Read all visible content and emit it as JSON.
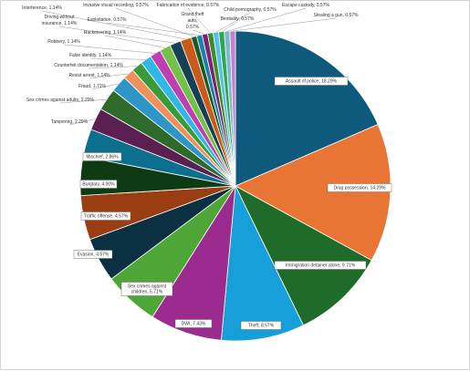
{
  "chart_data": {
    "type": "pie",
    "title": "",
    "slices": [
      {
        "label": "Assault of police, 18.29%",
        "value": 18.29,
        "color": "#0f5a7c"
      },
      {
        "label": "Drug possession, 14.29%",
        "value": 14.29,
        "color": "#e87533"
      },
      {
        "label": "Immigration detainer alone, 9.71%",
        "value": 9.71,
        "color": "#1f6b2a"
      },
      {
        "label": "Theft, 8.57%",
        "value": 8.57,
        "color": "#169fd9"
      },
      {
        "label": "DWI, 7.43%",
        "value": 7.43,
        "color": "#9b2b8e"
      },
      {
        "label": "Sex crimes against children, 5.71%",
        "value": 5.71,
        "color": "#4ea636"
      },
      {
        "label": "Evasion, 4.57%",
        "value": 4.57,
        "color": "#0a3042"
      },
      {
        "label": "Traffic offense, 4.57%",
        "value": 4.57,
        "color": "#9a3d12"
      },
      {
        "label": "Burglary, 4.00%",
        "value": 4.0,
        "color": "#0e3b14"
      },
      {
        "label": "Mischief, 2.86%",
        "value": 2.86,
        "color": "#0b6f8d"
      },
      {
        "label": "Tampering, 2.29%",
        "value": 2.29,
        "color": "#5c1f52"
      },
      {
        "label": "Sex crimes against adults, 2.29%",
        "value": 2.29,
        "color": "#2e6a2a"
      },
      {
        "label": "Fraud, 1.71%",
        "value": 1.71,
        "color": "#2e96c6"
      },
      {
        "label": "Resist arrest, 1.14%",
        "value": 1.14,
        "color": "#f0915c"
      },
      {
        "label": "Counterfeit documentation, 1.14%",
        "value": 1.14,
        "color": "#3a9a3a"
      },
      {
        "label": "False identity, 1.14%",
        "value": 1.14,
        "color": "#2fb7e8"
      },
      {
        "label": "Robbery, 1.14%",
        "value": 1.14,
        "color": "#c03fb0"
      },
      {
        "label": "Racketeering, 1.14%",
        "value": 1.14,
        "color": "#74c04a"
      },
      {
        "label": "Driving without insurance, 1.14%",
        "value": 1.14,
        "color": "#173f55"
      },
      {
        "label": "Interference, 1.14%",
        "value": 1.14,
        "color": "#c95a1a"
      },
      {
        "label": "Invasive visual recording, 0.57%",
        "value": 0.57,
        "color": "#1d5a1f"
      },
      {
        "label": "Exploitation, 0.57%",
        "value": 0.57,
        "color": "#1b7fb0"
      },
      {
        "label": "Grand theft auto, 0.57%",
        "value": 0.57,
        "color": "#7a2470"
      },
      {
        "label": "Fabrication of evidence, 0.57%",
        "value": 0.57,
        "color": "#3b8c2a"
      },
      {
        "label": "Child pornography, 0.57%",
        "value": 0.57,
        "color": "#57c0e8"
      },
      {
        "label": "Bestiality, 0.57%",
        "value": 0.57,
        "color": "#2ea84a"
      },
      {
        "label": "Escape custody, 0.57%",
        "value": 0.57,
        "color": "#7fb5d6"
      },
      {
        "label": "Stealing a gun, 0.57%",
        "value": 0.57,
        "color": "#c77fd0"
      }
    ]
  }
}
